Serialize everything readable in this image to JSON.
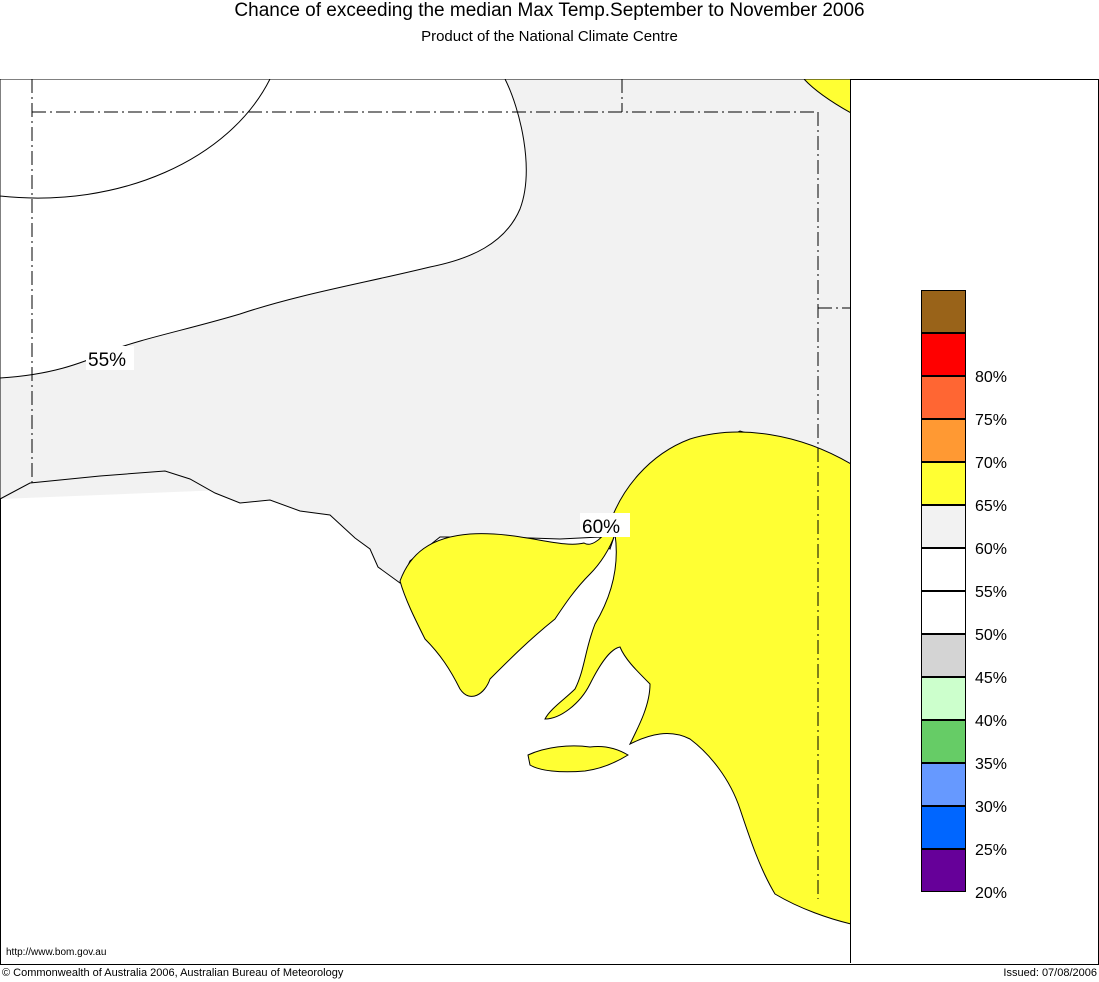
{
  "header": {
    "title": "Chance of exceeding the median Max Temp.September to November 2006",
    "subtitle": "Product of the National Climate Centre"
  },
  "map": {
    "contour_labels": {
      "c55": "55%",
      "c60": "60%"
    },
    "colors": {
      "band_55_60": "#f2f2f2",
      "band_60_65": "#ffff33",
      "sea": "#ffffff"
    }
  },
  "legend": {
    "items": [
      {
        "label": "",
        "color": "#996319"
      },
      {
        "label": "80%",
        "color": "#ff0000"
      },
      {
        "label": "75%",
        "color": "#ff6633"
      },
      {
        "label": "70%",
        "color": "#ff9933"
      },
      {
        "label": "65%",
        "color": "#ffff33"
      },
      {
        "label": "60%",
        "color": "#f2f2f2"
      },
      {
        "label": "55%",
        "color": "#ffffff"
      },
      {
        "label": "50%",
        "color": "#ffffff"
      },
      {
        "label": "45%",
        "color": "#d4d4d4"
      },
      {
        "label": "40%",
        "color": "#ccffcc"
      },
      {
        "label": "35%",
        "color": "#66cc66"
      },
      {
        "label": "30%",
        "color": "#6699ff"
      },
      {
        "label": "25%",
        "color": "#0066ff"
      },
      {
        "label": "20%",
        "color": "#660099"
      }
    ]
  },
  "footer": {
    "url": "http://www.bom.gov.au",
    "copyright": "© Commonwealth of Australia 2006, Australian Bureau of Meteorology",
    "issued": "Issued: 07/08/2006"
  }
}
